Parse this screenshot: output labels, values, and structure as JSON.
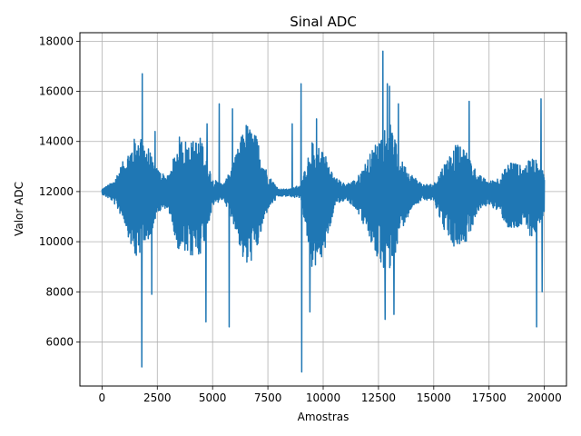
{
  "chart_data": {
    "type": "line",
    "title": "Sinal ADC",
    "xlabel": "Amostras",
    "ylabel": "Valor ADC",
    "xlim": [
      -1000,
      21000
    ],
    "ylim": [
      4240,
      18340
    ],
    "xticks": [
      0,
      2500,
      5000,
      7500,
      10000,
      12500,
      15000,
      17500,
      20000
    ],
    "xtick_labels": [
      "0",
      "2500",
      "5000",
      "7500",
      "10000",
      "12500",
      "15000",
      "17500",
      "20000"
    ],
    "yticks": [
      6000,
      8000,
      10000,
      12000,
      14000,
      16000,
      18000
    ],
    "ytick_labels": [
      "6000",
      "8000",
      "10000",
      "12000",
      "14000",
      "16000",
      "18000"
    ],
    "grid": true,
    "line_color": "#1f77b4",
    "series": [
      {
        "x_start": 0,
        "x_end": 20000,
        "baseline": 12000,
        "envelope_sample_step": 500,
        "envelope_upper": [
          12100,
          12400,
          13300,
          14200,
          14000,
          12900,
          12600,
          14200,
          14000,
          14200,
          12500,
          12300,
          13300,
          14800,
          14200,
          12700,
          12100,
          12100,
          12300,
          14000,
          13700,
          12600,
          12300,
          12500,
          13300,
          14200,
          14800,
          13300,
          12700,
          12300,
          12300,
          13200,
          13900,
          13600,
          12700,
          12400,
          12600,
          13300,
          13000,
          13400,
          12800
        ],
        "envelope_lower": [
          11900,
          11600,
          10800,
          9200,
          9800,
          11100,
          11300,
          9500,
          9300,
          9500,
          11400,
          11700,
          10600,
          8800,
          9600,
          11300,
          11800,
          11800,
          11700,
          8900,
          9300,
          11300,
          11700,
          11300,
          10300,
          9100,
          8600,
          10400,
          11300,
          11700,
          11600,
          10400,
          9600,
          10000,
          11200,
          11500,
          11100,
          10300,
          10600,
          10100,
          11100
        ],
        "spikes": [
          {
            "x": 1700,
            "y": 13400
          },
          {
            "x": 1800,
            "y": 5000
          },
          {
            "x": 1820,
            "y": 16700
          },
          {
            "x": 2250,
            "y": 7900
          },
          {
            "x": 2400,
            "y": 14400
          },
          {
            "x": 4700,
            "y": 6800
          },
          {
            "x": 4750,
            "y": 14700
          },
          {
            "x": 5300,
            "y": 15500
          },
          {
            "x": 5750,
            "y": 6600
          },
          {
            "x": 5900,
            "y": 15300
          },
          {
            "x": 8600,
            "y": 14700
          },
          {
            "x": 9000,
            "y": 16300
          },
          {
            "x": 9030,
            "y": 4800
          },
          {
            "x": 9400,
            "y": 7200
          },
          {
            "x": 9700,
            "y": 14900
          },
          {
            "x": 12700,
            "y": 17600
          },
          {
            "x": 12800,
            "y": 6900
          },
          {
            "x": 12900,
            "y": 16300
          },
          {
            "x": 13000,
            "y": 16200
          },
          {
            "x": 13200,
            "y": 7100
          },
          {
            "x": 13400,
            "y": 15500
          },
          {
            "x": 16600,
            "y": 15600
          },
          {
            "x": 19650,
            "y": 6600
          },
          {
            "x": 19850,
            "y": 15700
          },
          {
            "x": 19900,
            "y": 8000
          }
        ]
      }
    ]
  }
}
